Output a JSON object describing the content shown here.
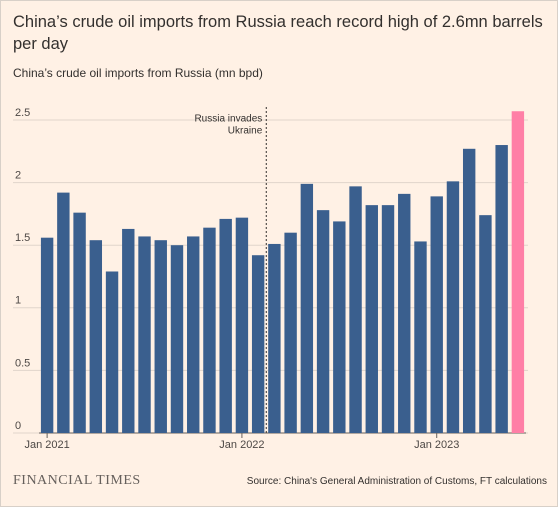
{
  "chart_data": {
    "type": "bar",
    "title": "China’s crude oil imports from Russia reach record high of 2.6mn barrels per day",
    "subtitle": "China’s crude oil imports from Russia (mn bpd)",
    "categories": [
      "Jan 2021",
      null,
      null,
      null,
      null,
      null,
      null,
      null,
      null,
      null,
      null,
      null,
      "Jan 2022",
      null,
      null,
      null,
      null,
      null,
      null,
      null,
      null,
      null,
      null,
      null,
      "Jan 2023",
      null,
      null,
      null,
      null,
      null
    ],
    "values": [
      1.56,
      1.92,
      1.76,
      1.54,
      1.29,
      1.63,
      1.57,
      1.54,
      1.5,
      1.57,
      1.64,
      1.71,
      1.72,
      1.42,
      1.51,
      1.6,
      1.99,
      1.78,
      1.69,
      1.97,
      1.82,
      1.82,
      1.91,
      1.53,
      1.89,
      2.01,
      2.27,
      1.74,
      2.3,
      2.57
    ],
    "colors": [
      "#3a5f8e",
      "#3a5f8e",
      "#3a5f8e",
      "#3a5f8e",
      "#3a5f8e",
      "#3a5f8e",
      "#3a5f8e",
      "#3a5f8e",
      "#3a5f8e",
      "#3a5f8e",
      "#3a5f8e",
      "#3a5f8e",
      "#3a5f8e",
      "#3a5f8e",
      "#3a5f8e",
      "#3a5f8e",
      "#3a5f8e",
      "#3a5f8e",
      "#3a5f8e",
      "#3a5f8e",
      "#3a5f8e",
      "#3a5f8e",
      "#3a5f8e",
      "#3a5f8e",
      "#3a5f8e",
      "#3a5f8e",
      "#3a5f8e",
      "#3a5f8e",
      "#3a5f8e",
      "#ff7fa6"
    ],
    "ylim": [
      0,
      2.5
    ],
    "yticks": [
      0,
      0.5,
      1,
      1.5,
      2,
      2.5
    ],
    "grid": true,
    "annotation": [
      "Russia invades",
      "Ukraine"
    ],
    "logo": "FINANCIAL TIMES",
    "source": "Source: China's General Administration of Customs, FT calculations"
  }
}
